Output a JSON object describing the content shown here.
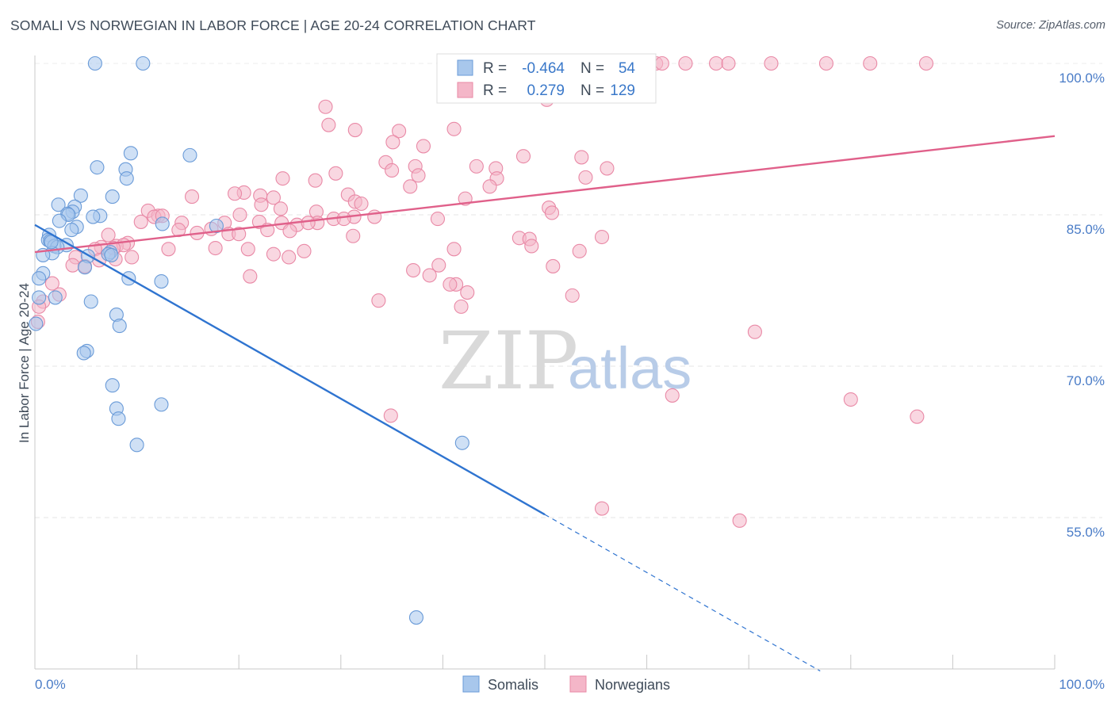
{
  "title": "SOMALI VS NORWEGIAN IN LABOR FORCE | AGE 20-24 CORRELATION CHART",
  "source": "Source: ZipAtlas.com",
  "watermark": {
    "zip": "ZIP",
    "atlas": "atlas"
  },
  "legend": {
    "r_label": "R =",
    "n_label": "N =",
    "rows": [
      {
        "r": "-0.464",
        "n": "54",
        "color": "#a8c7ec"
      },
      {
        "r": "0.279",
        "n": "129",
        "color": "#f4b6c8"
      }
    ]
  },
  "bottom_legend": [
    {
      "label": "Somalis",
      "color": "#a8c7ec"
    },
    {
      "label": "Norwegians",
      "color": "#f4b6c8"
    }
  ],
  "chart_data": {
    "type": "scatter",
    "title": "SOMALI VS NORWEGIAN IN LABOR FORCE | AGE 20-24 CORRELATION CHART",
    "xlabel": "",
    "ylabel": "In Labor Force | Age 20-24",
    "xlim": [
      0,
      100
    ],
    "ylim": [
      42.5,
      101.5
    ],
    "x_tick_labels": [
      "0.0%",
      "100.0%"
    ],
    "y_ticks": [
      55,
      70,
      85,
      100
    ],
    "y_tick_labels": [
      "55.0%",
      "70.0%",
      "85.0%",
      "100.0%"
    ],
    "grid": true,
    "series": [
      {
        "name": "Somalis",
        "color": "#a8c7ec",
        "stroke": "#6a9bd8",
        "trend_color": "#2f74d0",
        "trend": {
          "x0": 0,
          "y0": 84.0,
          "x1": 50,
          "y1": 55.3,
          "dash_x1": 77,
          "dash_y1": 39.8
        },
        "points": [
          [
            5.9,
            100
          ],
          [
            10.6,
            100
          ],
          [
            9.4,
            91.1
          ],
          [
            15.2,
            90.9
          ],
          [
            6.1,
            89.7
          ],
          [
            8.9,
            89.5
          ],
          [
            9.0,
            88.6
          ],
          [
            4.5,
            86.9
          ],
          [
            7.6,
            86.8
          ],
          [
            2.3,
            86.0
          ],
          [
            3.9,
            85.8
          ],
          [
            3.7,
            85.3
          ],
          [
            3.2,
            85.1
          ],
          [
            3.3,
            85.0
          ],
          [
            6.4,
            84.9
          ],
          [
            5.7,
            84.8
          ],
          [
            2.4,
            84.4
          ],
          [
            12.5,
            84.1
          ],
          [
            17.8,
            83.9
          ],
          [
            4.1,
            83.8
          ],
          [
            3.6,
            83.5
          ],
          [
            1.4,
            83.0
          ],
          [
            1.3,
            82.5
          ],
          [
            1.5,
            82.4
          ],
          [
            3.1,
            82.0
          ],
          [
            1.9,
            81.9
          ],
          [
            2.2,
            81.8
          ],
          [
            7.4,
            81.3
          ],
          [
            1.7,
            81.2
          ],
          [
            7.2,
            81.1
          ],
          [
            7.5,
            81.0
          ],
          [
            0.8,
            81.0
          ],
          [
            5.2,
            80.9
          ],
          [
            4.9,
            79.8
          ],
          [
            0.8,
            79.2
          ],
          [
            0.4,
            78.7
          ],
          [
            9.2,
            78.7
          ],
          [
            12.4,
            78.4
          ],
          [
            2.0,
            76.8
          ],
          [
            5.5,
            76.4
          ],
          [
            8.0,
            75.1
          ],
          [
            8.3,
            74.0
          ],
          [
            0.1,
            74.2
          ],
          [
            5.1,
            71.5
          ],
          [
            4.8,
            71.3
          ],
          [
            7.6,
            68.1
          ],
          [
            8.0,
            65.8
          ],
          [
            8.2,
            64.8
          ],
          [
            12.4,
            66.2
          ],
          [
            10.0,
            62.2
          ],
          [
            41.9,
            62.4
          ],
          [
            37.4,
            45.1
          ],
          [
            0.4,
            76.8
          ],
          [
            1.6,
            82.3
          ]
        ]
      },
      {
        "name": "Norwegians",
        "color": "#f4b6c8",
        "stroke": "#e989a6",
        "trend_color": "#e0608a",
        "trend": {
          "x0": 0,
          "y0": 81.3,
          "x1": 100,
          "y1": 92.8
        },
        "points": [
          [
            47.1,
            100
          ],
          [
            47.4,
            100
          ],
          [
            55.4,
            100
          ],
          [
            55.6,
            100
          ],
          [
            56.0,
            100
          ],
          [
            56.2,
            100
          ],
          [
            56.5,
            100
          ],
          [
            57.2,
            100
          ],
          [
            60.9,
            100
          ],
          [
            61.5,
            100
          ],
          [
            63.8,
            100
          ],
          [
            66.8,
            100
          ],
          [
            68.0,
            100
          ],
          [
            72.2,
            100
          ],
          [
            77.6,
            100
          ],
          [
            81.9,
            100
          ],
          [
            87.4,
            100
          ],
          [
            50.2,
            96.4
          ],
          [
            28.5,
            95.7
          ],
          [
            28.8,
            93.9
          ],
          [
            31.4,
            93.4
          ],
          [
            35.7,
            93.3
          ],
          [
            41.1,
            93.5
          ],
          [
            35.1,
            92.2
          ],
          [
            38.1,
            91.8
          ],
          [
            47.9,
            90.8
          ],
          [
            34.4,
            90.2
          ],
          [
            37.3,
            89.8
          ],
          [
            35.0,
            89.4
          ],
          [
            43.3,
            89.8
          ],
          [
            45.2,
            89.6
          ],
          [
            53.6,
            90.7
          ],
          [
            56.1,
            89.6
          ],
          [
            29.5,
            89.1
          ],
          [
            24.3,
            88.6
          ],
          [
            27.5,
            88.4
          ],
          [
            37.6,
            88.9
          ],
          [
            45.3,
            88.6
          ],
          [
            54.0,
            88.7
          ],
          [
            36.8,
            87.8
          ],
          [
            44.6,
            87.8
          ],
          [
            30.7,
            87.0
          ],
          [
            20.5,
            87.2
          ],
          [
            19.6,
            87.1
          ],
          [
            22.1,
            86.9
          ],
          [
            15.4,
            86.8
          ],
          [
            23.4,
            86.7
          ],
          [
            42.2,
            86.6
          ],
          [
            31.4,
            86.3
          ],
          [
            32.0,
            86.1
          ],
          [
            22.2,
            86.0
          ],
          [
            50.4,
            85.7
          ],
          [
            24.1,
            85.6
          ],
          [
            11.1,
            85.4
          ],
          [
            27.6,
            85.3
          ],
          [
            50.7,
            85.2
          ],
          [
            20.1,
            85.0
          ],
          [
            12.1,
            84.9
          ],
          [
            11.7,
            84.8
          ],
          [
            12.5,
            84.9
          ],
          [
            33.3,
            84.8
          ],
          [
            31.3,
            84.8
          ],
          [
            29.3,
            84.6
          ],
          [
            30.3,
            84.6
          ],
          [
            39.5,
            84.6
          ],
          [
            10.4,
            84.3
          ],
          [
            22.0,
            84.3
          ],
          [
            18.6,
            84.2
          ],
          [
            14.4,
            84.2
          ],
          [
            27.7,
            84.2
          ],
          [
            24.2,
            84.2
          ],
          [
            25.7,
            84.0
          ],
          [
            26.8,
            84.2
          ],
          [
            17.3,
            83.6
          ],
          [
            22.8,
            83.5
          ],
          [
            25.0,
            83.4
          ],
          [
            14.1,
            83.5
          ],
          [
            15.9,
            83.2
          ],
          [
            19.0,
            83.1
          ],
          [
            7.2,
            83.0
          ],
          [
            20.0,
            83.1
          ],
          [
            31.2,
            82.9
          ],
          [
            47.5,
            82.7
          ],
          [
            48.5,
            82.6
          ],
          [
            55.6,
            82.8
          ],
          [
            9.1,
            82.2
          ],
          [
            6.5,
            81.8
          ],
          [
            8.0,
            81.9
          ],
          [
            8.7,
            82.0
          ],
          [
            5.9,
            81.6
          ],
          [
            7.7,
            81.7
          ],
          [
            13.1,
            81.6
          ],
          [
            17.7,
            81.7
          ],
          [
            20.9,
            81.6
          ],
          [
            48.7,
            81.9
          ],
          [
            53.4,
            81.4
          ],
          [
            41.1,
            81.6
          ],
          [
            23.4,
            81.1
          ],
          [
            26.4,
            81.4
          ],
          [
            9.5,
            80.8
          ],
          [
            7.9,
            80.6
          ],
          [
            24.9,
            80.8
          ],
          [
            4.0,
            80.8
          ],
          [
            6.3,
            80.5
          ],
          [
            3.7,
            80.0
          ],
          [
            4.9,
            79.9
          ],
          [
            39.6,
            80.0
          ],
          [
            50.8,
            79.9
          ],
          [
            37.1,
            79.5
          ],
          [
            38.7,
            79.0
          ],
          [
            21.1,
            78.9
          ],
          [
            41.3,
            78.1
          ],
          [
            40.7,
            78.1
          ],
          [
            1.7,
            78.2
          ],
          [
            2.4,
            77.1
          ],
          [
            0.8,
            76.4
          ],
          [
            33.7,
            76.5
          ],
          [
            41.8,
            75.9
          ],
          [
            52.7,
            77.0
          ],
          [
            70.6,
            73.4
          ],
          [
            62.5,
            67.1
          ],
          [
            80.0,
            66.7
          ],
          [
            86.5,
            65.0
          ],
          [
            34.9,
            65.1
          ],
          [
            55.6,
            55.9
          ],
          [
            69.1,
            54.7
          ],
          [
            0.3,
            74.4
          ],
          [
            0.4,
            75.9
          ],
          [
            42.4,
            77.3
          ]
        ]
      }
    ]
  }
}
